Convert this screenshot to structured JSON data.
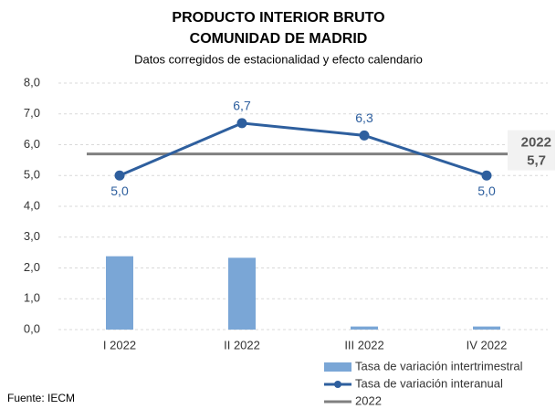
{
  "chart_data": {
    "type": "bar-line",
    "title": [
      "PRODUCTO INTERIOR BRUTO",
      "COMUNIDAD DE MADRID"
    ],
    "subtitle": "Datos corregidos de estacionalidad y efecto calendario",
    "source": "Fuente: IECM",
    "categories": [
      "I 2022",
      "II 2022",
      "III 2022",
      "IV 2022"
    ],
    "ylim": [
      0,
      8
    ],
    "yticks": [
      {
        "value": 0,
        "label": "0,0"
      },
      {
        "value": 1,
        "label": "1,0"
      },
      {
        "value": 2,
        "label": "2,0"
      },
      {
        "value": 3,
        "label": "3,0"
      },
      {
        "value": 4,
        "label": "4,0"
      },
      {
        "value": 5,
        "label": "5,0"
      },
      {
        "value": 6,
        "label": "6,0"
      },
      {
        "value": 7,
        "label": "7,0"
      },
      {
        "value": 8,
        "label": "8,0"
      }
    ],
    "grid": true,
    "series": [
      {
        "name": "Tasa de variación intertrimestral",
        "type": "bar",
        "color": "#7aa6d6",
        "values": [
          2.38,
          2.33,
          0.1,
          0.1
        ]
      },
      {
        "name": "Tasa de variación interanual",
        "type": "line",
        "color": "#2e5f9e",
        "values": [
          5.0,
          6.7,
          6.3,
          5.0
        ],
        "value_labels": [
          "5,0",
          "6,7",
          "6,3",
          "5,0"
        ]
      },
      {
        "name": "2022",
        "type": "hline",
        "color": "#808080",
        "value": 5.7,
        "value_label": "5,7"
      }
    ]
  }
}
